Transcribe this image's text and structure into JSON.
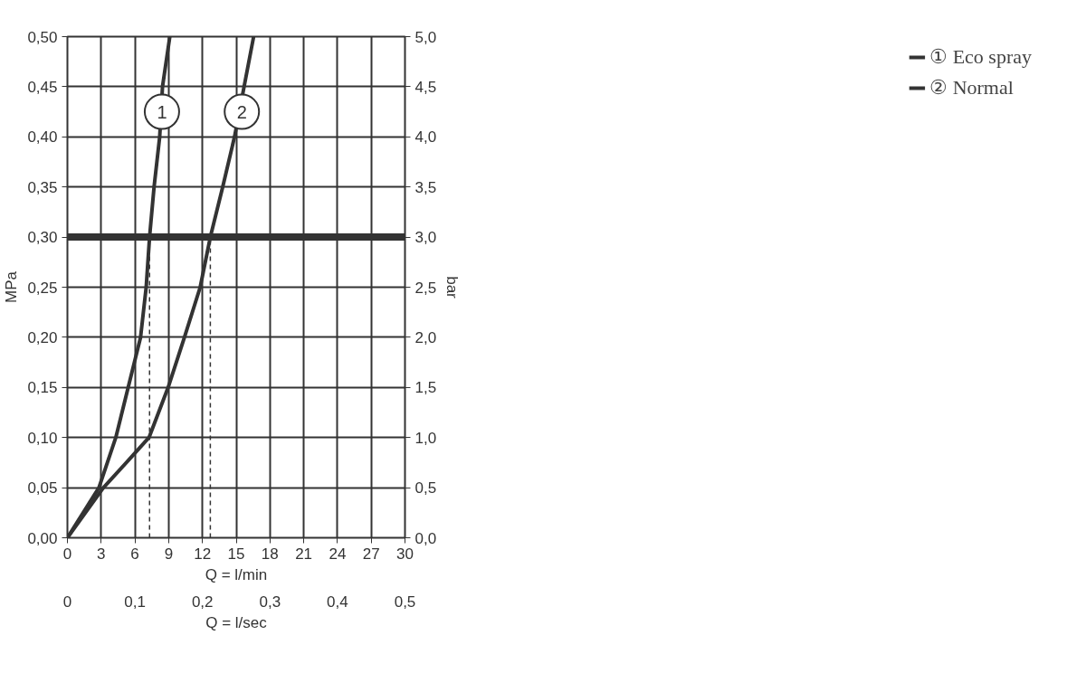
{
  "chart_data": {
    "type": "line",
    "xlabel": "Q = l/min",
    "x2label": "Q = l/sec",
    "ylabel": "MPa",
    "y2label": "bar",
    "xlim": [
      0,
      30
    ],
    "xticks": [
      0,
      3,
      6,
      9,
      12,
      15,
      18,
      21,
      24,
      27,
      30
    ],
    "x2lim": [
      0,
      0.5
    ],
    "x2ticks": [
      0,
      {
        "value": 0.1,
        "label": "0,1"
      },
      {
        "value": 0.2,
        "label": "0,2"
      },
      {
        "value": 0.3,
        "label": "0,3"
      },
      {
        "value": 0.4,
        "label": "0,4"
      },
      {
        "value": 0.5,
        "label": "0,5"
      }
    ],
    "ylim": [
      0,
      0.5
    ],
    "yticks": [
      {
        "value": 0,
        "label": "0,00"
      },
      {
        "value": 0.05,
        "label": "0,05"
      },
      {
        "value": 0.1,
        "label": "0,10"
      },
      {
        "value": 0.15,
        "label": "0,15"
      },
      {
        "value": 0.2,
        "label": "0,20"
      },
      {
        "value": 0.25,
        "label": "0,25"
      },
      {
        "value": 0.3,
        "label": "0,30"
      },
      {
        "value": 0.35,
        "label": "0,35"
      },
      {
        "value": 0.4,
        "label": "0,40"
      },
      {
        "value": 0.45,
        "label": "0,45"
      },
      {
        "value": 0.5,
        "label": "0,50"
      }
    ],
    "y2lim": [
      0,
      5
    ],
    "y2ticks": [
      {
        "value": 0,
        "label": "0,0"
      },
      {
        "value": 0.5,
        "label": "0,5"
      },
      {
        "value": 1,
        "label": "1,0"
      },
      {
        "value": 1.5,
        "label": "1,5"
      },
      {
        "value": 2,
        "label": "2,0"
      },
      {
        "value": 2.5,
        "label": "2,5"
      },
      {
        "value": 3,
        "label": "3,0"
      },
      {
        "value": 3.5,
        "label": "3,5"
      },
      {
        "value": 4,
        "label": "4,0"
      },
      {
        "value": 4.5,
        "label": "4,5"
      },
      {
        "value": 5,
        "label": "5,0"
      }
    ],
    "grid": true,
    "legend": "right",
    "marker": "none",
    "line_style": "solid",
    "series": [
      {
        "name": "① Eco spray",
        "color": "#333333",
        "x": [
          0,
          2.8,
          4.3,
          5.4,
          6.5,
          7.0,
          7.3,
          7.7,
          8.2,
          8.45,
          9.1
        ],
        "values": [
          0,
          0.05,
          0.1,
          0.15,
          0.2,
          0.25,
          0.3,
          0.35,
          0.4,
          0.45,
          0.5
        ]
      },
      {
        "name": "② Normal",
        "color": "#333333",
        "x": [
          0,
          3.2,
          5.4,
          7.25,
          8.95,
          10.4,
          11.8,
          12.7,
          13.8,
          14.85,
          15.7,
          16.55
        ],
        "values": [
          0,
          0.05,
          0.077,
          0.1,
          0.15,
          0.2,
          0.25,
          0.3,
          0.35,
          0.4,
          0.45,
          0.5
        ]
      },
      {
        "color": "#333333",
        "line_style": "dashed",
        "x": [
          7.3,
          7.3
        ],
        "values": [
          0,
          0.3
        ]
      },
      {
        "color": "#333333",
        "line_style": "dashed",
        "x": [
          12.7,
          12.7
        ],
        "values": [
          0,
          0.3
        ]
      }
    ],
    "ref_lines": [
      {
        "axis": "y",
        "value": 0.3,
        "color": "#333333"
      }
    ],
    "annotations": [
      {
        "text": "1",
        "x": 8.4,
        "y": 0.425
      },
      {
        "text": "2",
        "x": 15.5,
        "y": 0.425
      }
    ]
  }
}
